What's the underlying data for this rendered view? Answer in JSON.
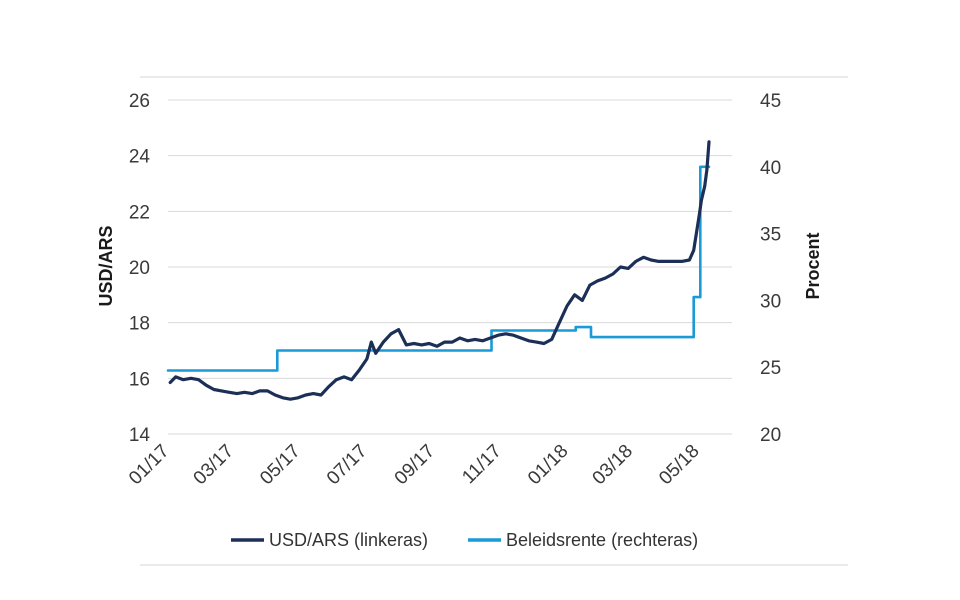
{
  "chart_data": {
    "type": "line",
    "ylabel_left": "USD/ARS",
    "ylabel_right": "Procent",
    "ylim_left": [
      14,
      26
    ],
    "yticks_left": [
      "14",
      "16",
      "18",
      "20",
      "22",
      "24",
      "26"
    ],
    "ylim_right": [
      20,
      45
    ],
    "yticks_right": [
      "20",
      "25",
      "30",
      "35",
      "40",
      "45"
    ],
    "x_range": [
      "2017-01-01",
      "2018-06-01"
    ],
    "xticks": [
      {
        "label": "01/17",
        "date": "2017-01-01"
      },
      {
        "label": "03/17",
        "date": "2017-03-01"
      },
      {
        "label": "05/17",
        "date": "2017-05-01"
      },
      {
        "label": "07/17",
        "date": "2017-07-01"
      },
      {
        "label": "09/17",
        "date": "2017-09-01"
      },
      {
        "label": "11/17",
        "date": "2017-11-01"
      },
      {
        "label": "01/18",
        "date": "2018-01-01"
      },
      {
        "label": "03/18",
        "date": "2018-03-01"
      },
      {
        "label": "05/18",
        "date": "2018-05-01"
      }
    ],
    "grid": "horizontal",
    "legend_position": "bottom",
    "series": [
      {
        "name": "USD/ARS (linkeras)",
        "axis": "left",
        "color": "#1b2f57",
        "points": [
          [
            "2017-01-03",
            15.85
          ],
          [
            "2017-01-08",
            16.05
          ],
          [
            "2017-01-15",
            15.95
          ],
          [
            "2017-01-22",
            16.0
          ],
          [
            "2017-01-29",
            15.95
          ],
          [
            "2017-02-05",
            15.75
          ],
          [
            "2017-02-12",
            15.6
          ],
          [
            "2017-02-19",
            15.55
          ],
          [
            "2017-02-26",
            15.5
          ],
          [
            "2017-03-05",
            15.45
          ],
          [
            "2017-03-12",
            15.5
          ],
          [
            "2017-03-19",
            15.45
          ],
          [
            "2017-03-26",
            15.55
          ],
          [
            "2017-04-02",
            15.55
          ],
          [
            "2017-04-09",
            15.4
          ],
          [
            "2017-04-16",
            15.3
          ],
          [
            "2017-04-23",
            15.25
          ],
          [
            "2017-04-30",
            15.3
          ],
          [
            "2017-05-07",
            15.4
          ],
          [
            "2017-05-14",
            15.45
          ],
          [
            "2017-05-21",
            15.4
          ],
          [
            "2017-05-28",
            15.7
          ],
          [
            "2017-06-04",
            15.95
          ],
          [
            "2017-06-11",
            16.05
          ],
          [
            "2017-06-18",
            15.95
          ],
          [
            "2017-06-25",
            16.3
          ],
          [
            "2017-07-02",
            16.7
          ],
          [
            "2017-07-06",
            17.3
          ],
          [
            "2017-07-10",
            16.9
          ],
          [
            "2017-07-17",
            17.3
          ],
          [
            "2017-07-24",
            17.6
          ],
          [
            "2017-07-31",
            17.75
          ],
          [
            "2017-08-07",
            17.2
          ],
          [
            "2017-08-14",
            17.25
          ],
          [
            "2017-08-21",
            17.2
          ],
          [
            "2017-08-28",
            17.25
          ],
          [
            "2017-09-04",
            17.15
          ],
          [
            "2017-09-11",
            17.3
          ],
          [
            "2017-09-18",
            17.3
          ],
          [
            "2017-09-25",
            17.45
          ],
          [
            "2017-10-02",
            17.35
          ],
          [
            "2017-10-09",
            17.4
          ],
          [
            "2017-10-16",
            17.35
          ],
          [
            "2017-10-23",
            17.45
          ],
          [
            "2017-10-30",
            17.55
          ],
          [
            "2017-11-06",
            17.6
          ],
          [
            "2017-11-13",
            17.55
          ],
          [
            "2017-11-20",
            17.45
          ],
          [
            "2017-11-27",
            17.35
          ],
          [
            "2017-12-04",
            17.3
          ],
          [
            "2017-12-11",
            17.25
          ],
          [
            "2017-12-18",
            17.4
          ],
          [
            "2017-12-25",
            18.0
          ],
          [
            "2018-01-01",
            18.6
          ],
          [
            "2018-01-08",
            19.0
          ],
          [
            "2018-01-15",
            18.8
          ],
          [
            "2018-01-22",
            19.35
          ],
          [
            "2018-01-29",
            19.5
          ],
          [
            "2018-02-05",
            19.6
          ],
          [
            "2018-02-12",
            19.75
          ],
          [
            "2018-02-19",
            20.0
          ],
          [
            "2018-02-26",
            19.95
          ],
          [
            "2018-03-05",
            20.2
          ],
          [
            "2018-03-12",
            20.35
          ],
          [
            "2018-03-19",
            20.25
          ],
          [
            "2018-03-26",
            20.2
          ],
          [
            "2018-04-02",
            20.2
          ],
          [
            "2018-04-09",
            20.2
          ],
          [
            "2018-04-16",
            20.2
          ],
          [
            "2018-04-23",
            20.25
          ],
          [
            "2018-04-27",
            20.6
          ],
          [
            "2018-05-02",
            21.85
          ],
          [
            "2018-05-04",
            22.4
          ],
          [
            "2018-05-07",
            22.9
          ],
          [
            "2018-05-09",
            23.5
          ],
          [
            "2018-05-11",
            24.5
          ]
        ]
      },
      {
        "name": "Beleidsrente (rechteras)",
        "axis": "right",
        "color": "#1a9ad6",
        "step": true,
        "points": [
          [
            "2017-01-01",
            24.75
          ],
          [
            "2017-04-11",
            26.25
          ],
          [
            "2017-10-24",
            27.75
          ],
          [
            "2018-01-09",
            28.0
          ],
          [
            "2018-01-23",
            27.25
          ],
          [
            "2018-04-27",
            30.25
          ],
          [
            "2018-05-03",
            40.0
          ],
          [
            "2018-05-11",
            40.0
          ]
        ]
      }
    ]
  }
}
